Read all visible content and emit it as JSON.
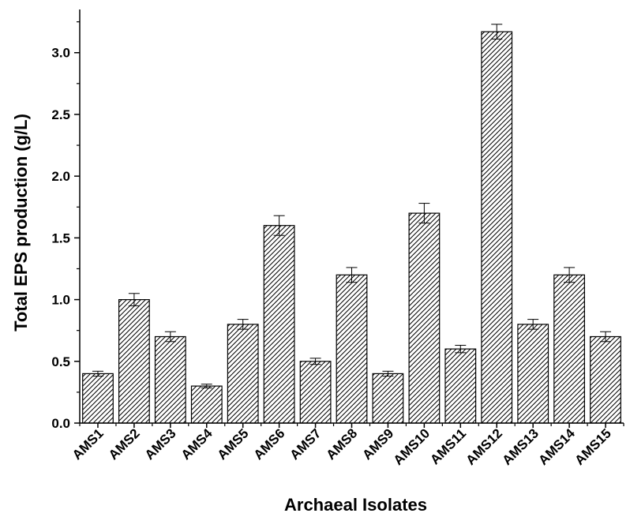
{
  "chart_data": {
    "type": "bar",
    "title": "",
    "xlabel": "Archaeal Isolates",
    "ylabel": "Total EPS production (g/L)",
    "ylim": [
      0,
      3.35
    ],
    "yticks": [
      "0.0",
      "0.5",
      "1.0",
      "1.5",
      "2.0",
      "2.5",
      "3.0"
    ],
    "grid": false,
    "legend": "none",
    "bar_fill": "diagonal-hatch",
    "colors": {
      "bar_stroke": "#000000",
      "hatch": "#000000",
      "background": "#ffffff"
    },
    "categories": [
      "AMS1",
      "AMS2",
      "AMS3",
      "AMS4",
      "AMS5",
      "AMS6",
      "AMS7",
      "AMS8",
      "AMS9",
      "AMS10",
      "AMS11",
      "AMS12",
      "AMS13",
      "AMS14",
      "AMS15"
    ],
    "values": [
      0.4,
      1.0,
      0.7,
      0.3,
      0.8,
      1.6,
      0.5,
      1.2,
      0.4,
      1.7,
      0.6,
      3.17,
      0.8,
      1.2,
      0.7
    ],
    "errors": [
      0.02,
      0.05,
      0.04,
      0.015,
      0.04,
      0.08,
      0.025,
      0.06,
      0.02,
      0.08,
      0.03,
      0.06,
      0.04,
      0.06,
      0.04
    ]
  }
}
